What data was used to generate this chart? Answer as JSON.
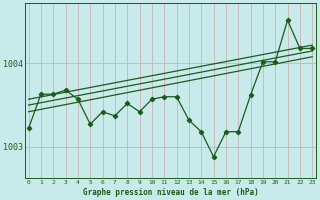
{
  "xlabel": "Graphe pression niveau de la mer (hPa)",
  "background_color": "#c8eaea",
  "grid_color": "#c8b4b4",
  "line_color": "#1a5c1a",
  "x_ticks": [
    0,
    1,
    2,
    3,
    4,
    5,
    6,
    7,
    8,
    9,
    10,
    11,
    12,
    13,
    14,
    15,
    16,
    17,
    18,
    19,
    20,
    21,
    22,
    23
  ],
  "y_ticks": [
    1003,
    1004
  ],
  "ylim": [
    1002.62,
    1004.72
  ],
  "xlim": [
    -0.3,
    23.3
  ],
  "main_data": [
    1003.22,
    1003.63,
    1003.63,
    1003.68,
    1003.57,
    1003.27,
    1003.42,
    1003.37,
    1003.52,
    1003.42,
    1003.57,
    1003.6,
    1003.6,
    1003.32,
    1003.18,
    1002.88,
    1003.18,
    1003.18,
    1003.62,
    1004.02,
    1004.02,
    1004.52,
    1004.18,
    1004.18
  ],
  "trend_lines": [
    [
      1003.42,
      1004.08
    ],
    [
      1003.5,
      1004.15
    ],
    [
      1003.57,
      1004.22
    ]
  ]
}
